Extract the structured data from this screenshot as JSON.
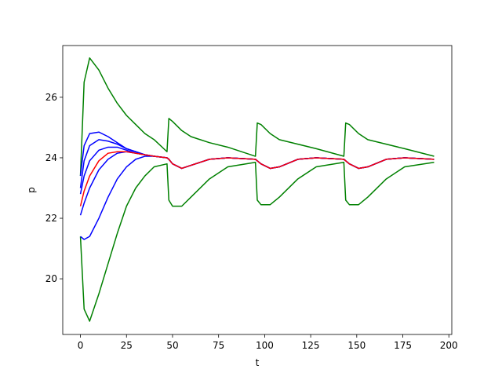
{
  "chart_data": {
    "type": "line",
    "xlabel": "t",
    "ylabel": "p",
    "x": [
      0,
      2,
      5,
      10,
      15,
      20,
      25,
      30,
      35,
      40,
      47,
      48,
      50,
      55,
      60,
      70,
      80,
      95,
      96,
      98,
      103,
      108,
      118,
      128,
      143,
      144,
      146,
      151,
      156,
      166,
      176,
      192
    ],
    "xlim": [
      -9.6,
      201.6
    ],
    "xticks": [
      0,
      25,
      50,
      75,
      100,
      125,
      150,
      175,
      200
    ],
    "ylim": [
      18.16,
      27.71
    ],
    "yticks": [
      20,
      22,
      24,
      26
    ],
    "series": [
      {
        "color": "#008000",
        "values": [
          23.4,
          26.5,
          27.3,
          26.9,
          26.3,
          25.8,
          25.4,
          25.1,
          24.8,
          24.6,
          24.2,
          25.3,
          25.2,
          24.9,
          24.7,
          24.5,
          24.35,
          24.05,
          25.15,
          25.1,
          24.8,
          24.6,
          24.45,
          24.3,
          24.05,
          25.15,
          25.1,
          24.8,
          24.6,
          24.45,
          24.3,
          24.05
        ]
      },
      {
        "color": "#008000",
        "values": [
          21.4,
          19.0,
          18.6,
          19.5,
          20.5,
          21.5,
          22.4,
          23.0,
          23.4,
          23.7,
          23.8,
          22.6,
          22.4,
          22.4,
          22.7,
          23.3,
          23.7,
          23.85,
          22.6,
          22.45,
          22.45,
          22.7,
          23.3,
          23.7,
          23.85,
          22.6,
          22.45,
          22.45,
          22.7,
          23.3,
          23.7,
          23.85
        ]
      },
      {
        "color": "#0000ff",
        "values": [
          23.4,
          24.4,
          24.8,
          24.85,
          24.7,
          24.5,
          24.3,
          24.2,
          24.1,
          24.05,
          24.0,
          23.95,
          23.8,
          23.65,
          23.75,
          23.95,
          24.0,
          23.95,
          23.9,
          23.8,
          23.65,
          23.7,
          23.95,
          24.0,
          23.95,
          23.9,
          23.8,
          23.65,
          23.7,
          23.95,
          24.0,
          23.95
        ]
      },
      {
        "color": "#0000ff",
        "values": [
          23.0,
          23.9,
          24.4,
          24.6,
          24.55,
          24.45,
          24.3,
          24.2,
          24.1,
          24.05,
          24.0,
          23.95,
          23.8,
          23.65,
          23.75,
          23.95,
          24.0,
          23.95,
          23.9,
          23.8,
          23.65,
          23.7,
          23.95,
          24.0,
          23.95,
          23.9,
          23.8,
          23.65,
          23.7,
          23.95,
          24.0,
          23.95
        ]
      },
      {
        "color": "#0000ff",
        "values": [
          22.8,
          23.4,
          23.9,
          24.25,
          24.35,
          24.35,
          24.25,
          24.15,
          24.1,
          24.05,
          24.0,
          23.95,
          23.8,
          23.65,
          23.75,
          23.95,
          24.0,
          23.95,
          23.9,
          23.8,
          23.65,
          23.7,
          23.95,
          24.0,
          23.95,
          23.9,
          23.8,
          23.65,
          23.7,
          23.95,
          24.0,
          23.95
        ]
      },
      {
        "color": "#0000ff",
        "values": [
          22.1,
          22.5,
          23.0,
          23.6,
          23.95,
          24.15,
          24.2,
          24.15,
          24.1,
          24.05,
          24.0,
          23.95,
          23.8,
          23.65,
          23.75,
          23.95,
          24.0,
          23.95,
          23.9,
          23.8,
          23.65,
          23.7,
          23.95,
          24.0,
          23.95,
          23.9,
          23.8,
          23.65,
          23.7,
          23.95,
          24.0,
          23.95
        ]
      },
      {
        "color": "#0000ff",
        "values": [
          21.4,
          21.3,
          21.4,
          22.0,
          22.7,
          23.3,
          23.7,
          23.95,
          24.05,
          24.05,
          24.0,
          23.95,
          23.8,
          23.65,
          23.75,
          23.95,
          24.0,
          23.95,
          23.9,
          23.8,
          23.65,
          23.7,
          23.95,
          24.0,
          23.95,
          23.9,
          23.8,
          23.65,
          23.7,
          23.95,
          24.0,
          23.95
        ]
      },
      {
        "color": "#ff0000",
        "values": [
          22.4,
          22.9,
          23.4,
          23.9,
          24.15,
          24.2,
          24.2,
          24.15,
          24.1,
          24.05,
          24.0,
          23.95,
          23.8,
          23.65,
          23.75,
          23.95,
          24.0,
          23.95,
          23.9,
          23.8,
          23.65,
          23.7,
          23.95,
          24.0,
          23.95,
          23.9,
          23.8,
          23.65,
          23.7,
          23.95,
          24.0,
          23.95
        ]
      }
    ]
  }
}
